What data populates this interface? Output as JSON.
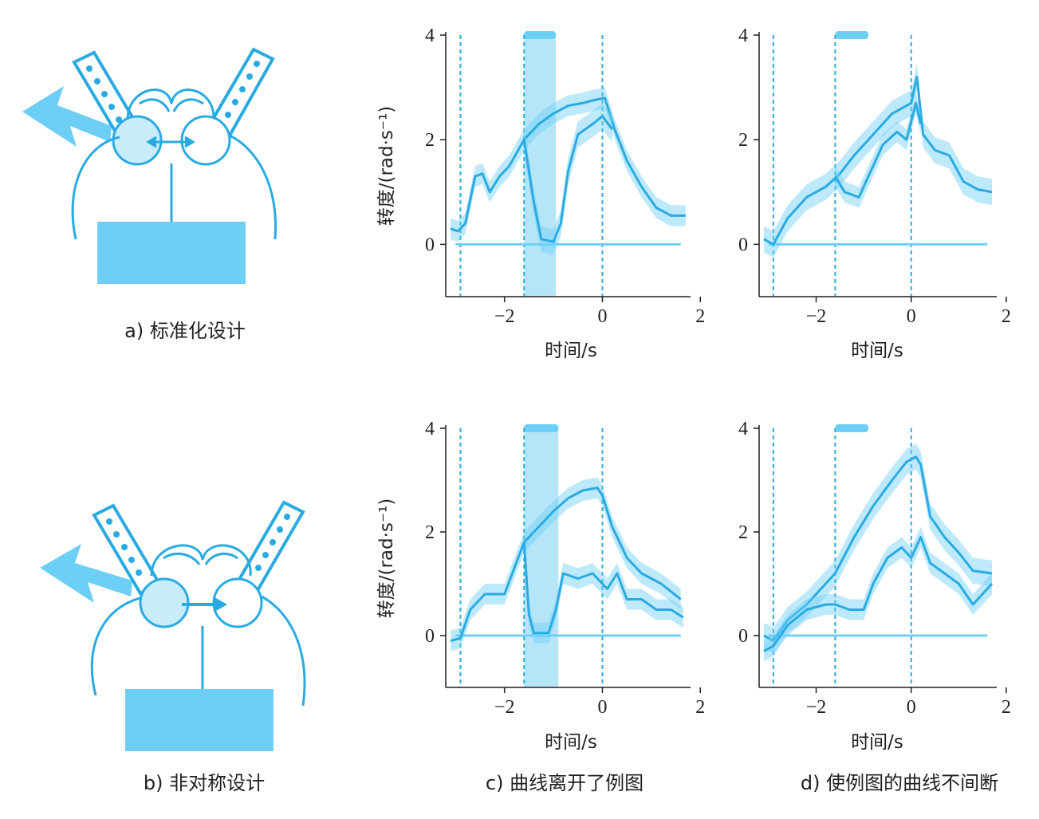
{
  "captions": {
    "a": "a) 标准化设计",
    "b": "b) 非对称设计",
    "c": "c) 曲线离开了例图",
    "d": "d) 使例图的曲线不间断"
  },
  "colors": {
    "main": "#29abe2",
    "band": "#9fdcf5",
    "fill": "#6dcff6",
    "axis": "#231f20"
  },
  "icons": [
    "lightning-bolt-icon",
    "electrode-icon",
    "brain-icon",
    "recorder-box-icon"
  ],
  "chart_data": [
    {
      "id": "top-left",
      "type": "line",
      "xlabel": "时间/s",
      "ylabel": "转度/(rad·s⁻¹)",
      "xlim": [
        -3.2,
        1.8
      ],
      "ylim": [
        -1,
        4
      ],
      "xticks": [
        {
          "v": -2,
          "t": "−2"
        },
        {
          "v": 0,
          "t": "0"
        },
        {
          "v": 2,
          "t": "2"
        }
      ],
      "yticks": [
        {
          "v": 0,
          "t": "0"
        },
        {
          "v": 2,
          "t": "2"
        },
        {
          "v": 4,
          "t": "4"
        }
      ],
      "vlines": [
        -2.9,
        -1.6,
        0
      ],
      "shade": [
        -1.6,
        -0.95
      ],
      "bar": [
        -1.6,
        -0.95
      ],
      "baseline": 0,
      "series": [
        {
          "points": [
            [
              -3.1,
              0.3
            ],
            [
              -2.95,
              0.25
            ],
            [
              -2.8,
              0.4
            ],
            [
              -2.6,
              1.3
            ],
            [
              -2.45,
              1.35
            ],
            [
              -2.3,
              1.0
            ],
            [
              -2.1,
              1.3
            ],
            [
              -1.9,
              1.5
            ],
            [
              -1.6,
              2.0
            ],
            [
              -1.3,
              2.3
            ],
            [
              -1.0,
              2.5
            ],
            [
              -0.7,
              2.65
            ],
            [
              -0.4,
              2.7
            ],
            [
              -0.2,
              2.75
            ],
            [
              0.05,
              2.8
            ],
            [
              0.25,
              2.2
            ],
            [
              0.5,
              1.6
            ],
            [
              0.8,
              1.1
            ],
            [
              1.1,
              0.7
            ],
            [
              1.4,
              0.55
            ],
            [
              1.7,
              0.55
            ]
          ],
          "err": 0.2
        },
        {
          "points": [
            [
              -1.6,
              2.0
            ],
            [
              -1.4,
              0.8
            ],
            [
              -1.25,
              0.1
            ],
            [
              -1.0,
              0.05
            ],
            [
              -0.85,
              0.4
            ],
            [
              -0.7,
              1.4
            ],
            [
              -0.5,
              2.1
            ],
            [
              -0.2,
              2.3
            ],
            [
              0.0,
              2.45
            ],
            [
              0.2,
              2.2
            ]
          ],
          "err": 0.25
        }
      ]
    },
    {
      "id": "top-right",
      "type": "line",
      "xlabel": "时间/s",
      "ylabel": "",
      "xlim": [
        -3.2,
        1.8
      ],
      "ylim": [
        -1,
        4
      ],
      "xticks": [
        {
          "v": -2,
          "t": "−2"
        },
        {
          "v": 0,
          "t": "0"
        },
        {
          "v": 2,
          "t": "2"
        }
      ],
      "yticks": [
        {
          "v": 0,
          "t": "0"
        },
        {
          "v": 2,
          "t": "2"
        },
        {
          "v": 4,
          "t": "4"
        }
      ],
      "vlines": [
        -2.9,
        -1.6,
        0
      ],
      "shade": null,
      "bar": [
        -1.6,
        -0.9
      ],
      "baseline": 0,
      "series": [
        {
          "points": [
            [
              -3.1,
              0.1
            ],
            [
              -2.9,
              0.0
            ],
            [
              -2.6,
              0.5
            ],
            [
              -2.2,
              0.9
            ],
            [
              -1.8,
              1.1
            ],
            [
              -1.5,
              1.35
            ],
            [
              -1.2,
              1.7
            ],
            [
              -0.8,
              2.1
            ],
            [
              -0.4,
              2.5
            ],
            [
              0.0,
              2.7
            ],
            [
              0.12,
              3.2
            ],
            [
              0.25,
              2.1
            ],
            [
              0.5,
              1.8
            ],
            [
              0.8,
              1.7
            ],
            [
              1.1,
              1.2
            ],
            [
              1.4,
              1.05
            ],
            [
              1.7,
              1.0
            ]
          ],
          "err": 0.25
        },
        {
          "points": [
            [
              -1.6,
              1.3
            ],
            [
              -1.4,
              1.0
            ],
            [
              -1.1,
              0.9
            ],
            [
              -0.9,
              1.3
            ],
            [
              -0.6,
              1.9
            ],
            [
              -0.3,
              2.15
            ],
            [
              -0.1,
              2.0
            ],
            [
              0.1,
              2.7
            ],
            [
              0.2,
              2.3
            ]
          ],
          "err": 0.2
        }
      ]
    },
    {
      "id": "bottom-left",
      "type": "line",
      "xlabel": "时间/s",
      "ylabel": "转度/(rad·s⁻¹)",
      "xlim": [
        -3.2,
        1.8
      ],
      "ylim": [
        -1,
        4
      ],
      "xticks": [
        {
          "v": -2,
          "t": "−2"
        },
        {
          "v": 0,
          "t": "0"
        },
        {
          "v": 2,
          "t": "2"
        }
      ],
      "yticks": [
        {
          "v": 0,
          "t": "0"
        },
        {
          "v": 2,
          "t": "2"
        },
        {
          "v": 4,
          "t": "4"
        }
      ],
      "vlines": [
        -2.9,
        -1.6,
        0
      ],
      "shade": [
        -1.6,
        -0.9
      ],
      "bar": [
        -1.6,
        -0.9
      ],
      "baseline": 0,
      "series": [
        {
          "points": [
            [
              -3.1,
              -0.1
            ],
            [
              -2.9,
              -0.05
            ],
            [
              -2.7,
              0.5
            ],
            [
              -2.4,
              0.8
            ],
            [
              -2.0,
              0.8
            ],
            [
              -1.6,
              1.8
            ],
            [
              -1.3,
              2.1
            ],
            [
              -1.0,
              2.4
            ],
            [
              -0.7,
              2.65
            ],
            [
              -0.4,
              2.8
            ],
            [
              -0.1,
              2.85
            ],
            [
              0.0,
              2.7
            ],
            [
              0.2,
              2.1
            ],
            [
              0.5,
              1.5
            ],
            [
              0.8,
              1.2
            ],
            [
              1.2,
              1.0
            ],
            [
              1.6,
              0.7
            ]
          ],
          "err": 0.2
        },
        {
          "points": [
            [
              -1.6,
              1.8
            ],
            [
              -1.5,
              0.4
            ],
            [
              -1.4,
              0.05
            ],
            [
              -1.1,
              0.05
            ],
            [
              -0.95,
              0.5
            ],
            [
              -0.8,
              1.2
            ],
            [
              -0.5,
              1.1
            ],
            [
              -0.2,
              1.2
            ],
            [
              0.1,
              0.9
            ],
            [
              0.3,
              1.2
            ],
            [
              0.5,
              0.7
            ],
            [
              0.8,
              0.7
            ],
            [
              1.1,
              0.5
            ],
            [
              1.4,
              0.5
            ],
            [
              1.65,
              0.35
            ]
          ],
          "err": 0.2
        }
      ]
    },
    {
      "id": "bottom-right",
      "type": "line",
      "xlabel": "时间/s",
      "ylabel": "",
      "xlim": [
        -3.2,
        1.8
      ],
      "ylim": [
        -1,
        4
      ],
      "xticks": [
        {
          "v": -2,
          "t": "−2"
        },
        {
          "v": 0,
          "t": "0"
        },
        {
          "v": 2,
          "t": "2"
        }
      ],
      "yticks": [
        {
          "v": 0,
          "t": "0"
        },
        {
          "v": 2,
          "t": "2"
        },
        {
          "v": 4,
          "t": "4"
        }
      ],
      "vlines": [
        -2.9,
        -1.6,
        0
      ],
      "shade": null,
      "bar": [
        -1.6,
        -0.9
      ],
      "baseline": 0,
      "series": [
        {
          "points": [
            [
              -3.1,
              0.0
            ],
            [
              -2.9,
              -0.1
            ],
            [
              -2.6,
              0.3
            ],
            [
              -2.2,
              0.6
            ],
            [
              -1.6,
              1.2
            ],
            [
              -1.2,
              1.9
            ],
            [
              -0.8,
              2.5
            ],
            [
              -0.4,
              3.0
            ],
            [
              -0.1,
              3.35
            ],
            [
              0.1,
              3.45
            ],
            [
              0.2,
              3.3
            ],
            [
              0.4,
              2.3
            ],
            [
              0.7,
              1.9
            ],
            [
              1.0,
              1.6
            ],
            [
              1.3,
              1.25
            ],
            [
              1.7,
              1.2
            ]
          ],
          "err": 0.25
        },
        {
          "points": [
            [
              -3.1,
              -0.3
            ],
            [
              -2.9,
              -0.2
            ],
            [
              -2.6,
              0.2
            ],
            [
              -2.2,
              0.5
            ],
            [
              -1.8,
              0.6
            ],
            [
              -1.6,
              0.6
            ],
            [
              -1.3,
              0.5
            ],
            [
              -1.0,
              0.5
            ],
            [
              -0.8,
              1.0
            ],
            [
              -0.5,
              1.5
            ],
            [
              -0.2,
              1.7
            ],
            [
              0.0,
              1.5
            ],
            [
              0.2,
              1.9
            ],
            [
              0.4,
              1.4
            ],
            [
              0.7,
              1.2
            ],
            [
              1.0,
              1.0
            ],
            [
              1.3,
              0.6
            ],
            [
              1.7,
              1.0
            ]
          ],
          "err": 0.2
        }
      ]
    }
  ]
}
